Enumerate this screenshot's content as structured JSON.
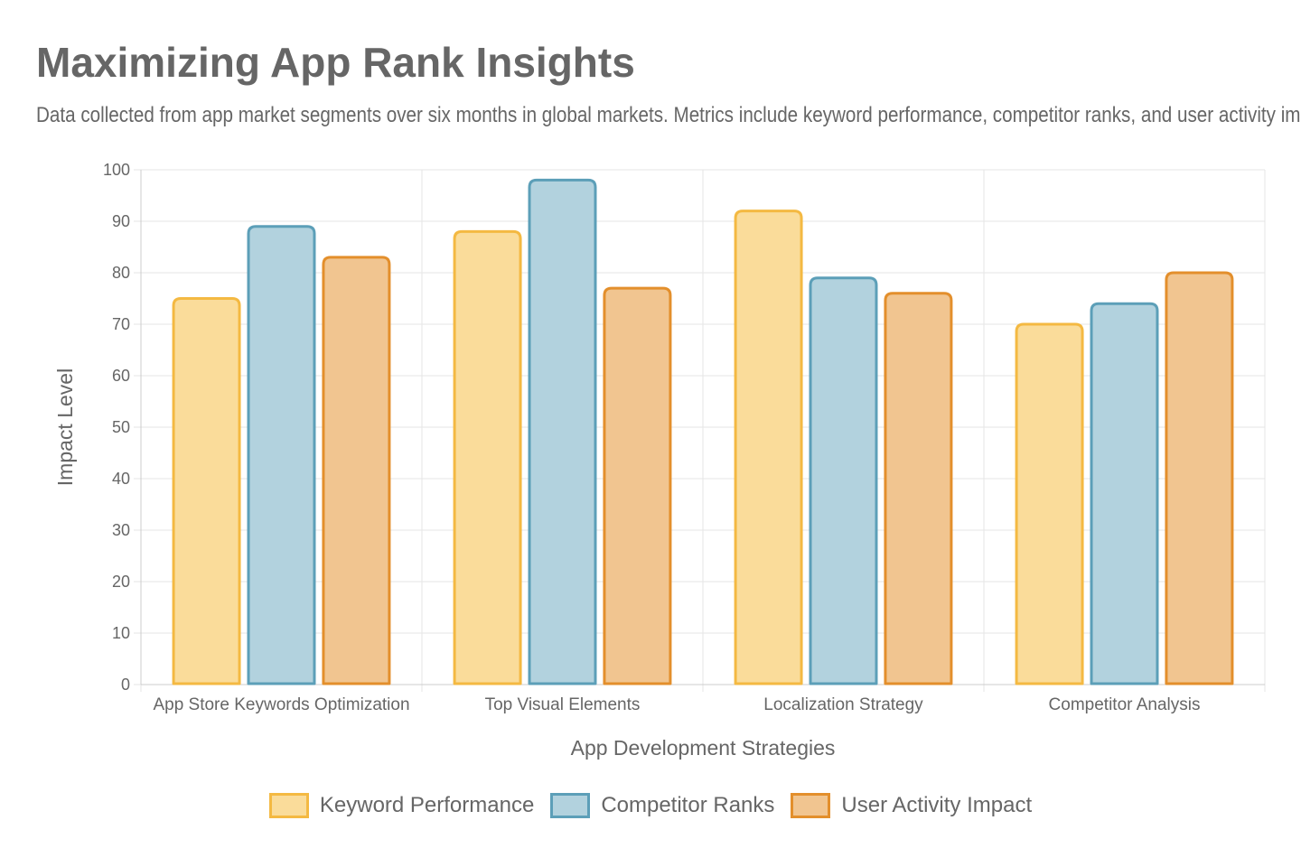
{
  "chart_data": {
    "type": "bar",
    "title": "Maximizing App Rank Insights",
    "subtitle": "Data collected from app market segments over six months in global markets. Metrics include keyword performance, competitor ranks, and user activity impact.",
    "xlabel": "App Development Strategies",
    "ylabel": "Impact Level",
    "ylim": [
      0,
      100
    ],
    "yticks": [
      0,
      10,
      20,
      30,
      40,
      50,
      60,
      70,
      80,
      90,
      100
    ],
    "grid": true,
    "legend_position": "bottom",
    "categories": [
      "App Store Keywords Optimization",
      "Top Visual Elements",
      "Localization Strategy",
      "Competitor Analysis"
    ],
    "series": [
      {
        "name": "Keyword Performance",
        "values": [
          75,
          88,
          92,
          70
        ],
        "fill": "#fadc9a",
        "stroke": "#f4b942"
      },
      {
        "name": "Competitor Ranks",
        "values": [
          89,
          98,
          79,
          74
        ],
        "fill": "#b2d2de",
        "stroke": "#5c9fb8"
      },
      {
        "name": "User Activity Impact",
        "values": [
          83,
          77,
          76,
          80
        ],
        "fill": "#f1c590",
        "stroke": "#e38f2c"
      }
    ]
  }
}
